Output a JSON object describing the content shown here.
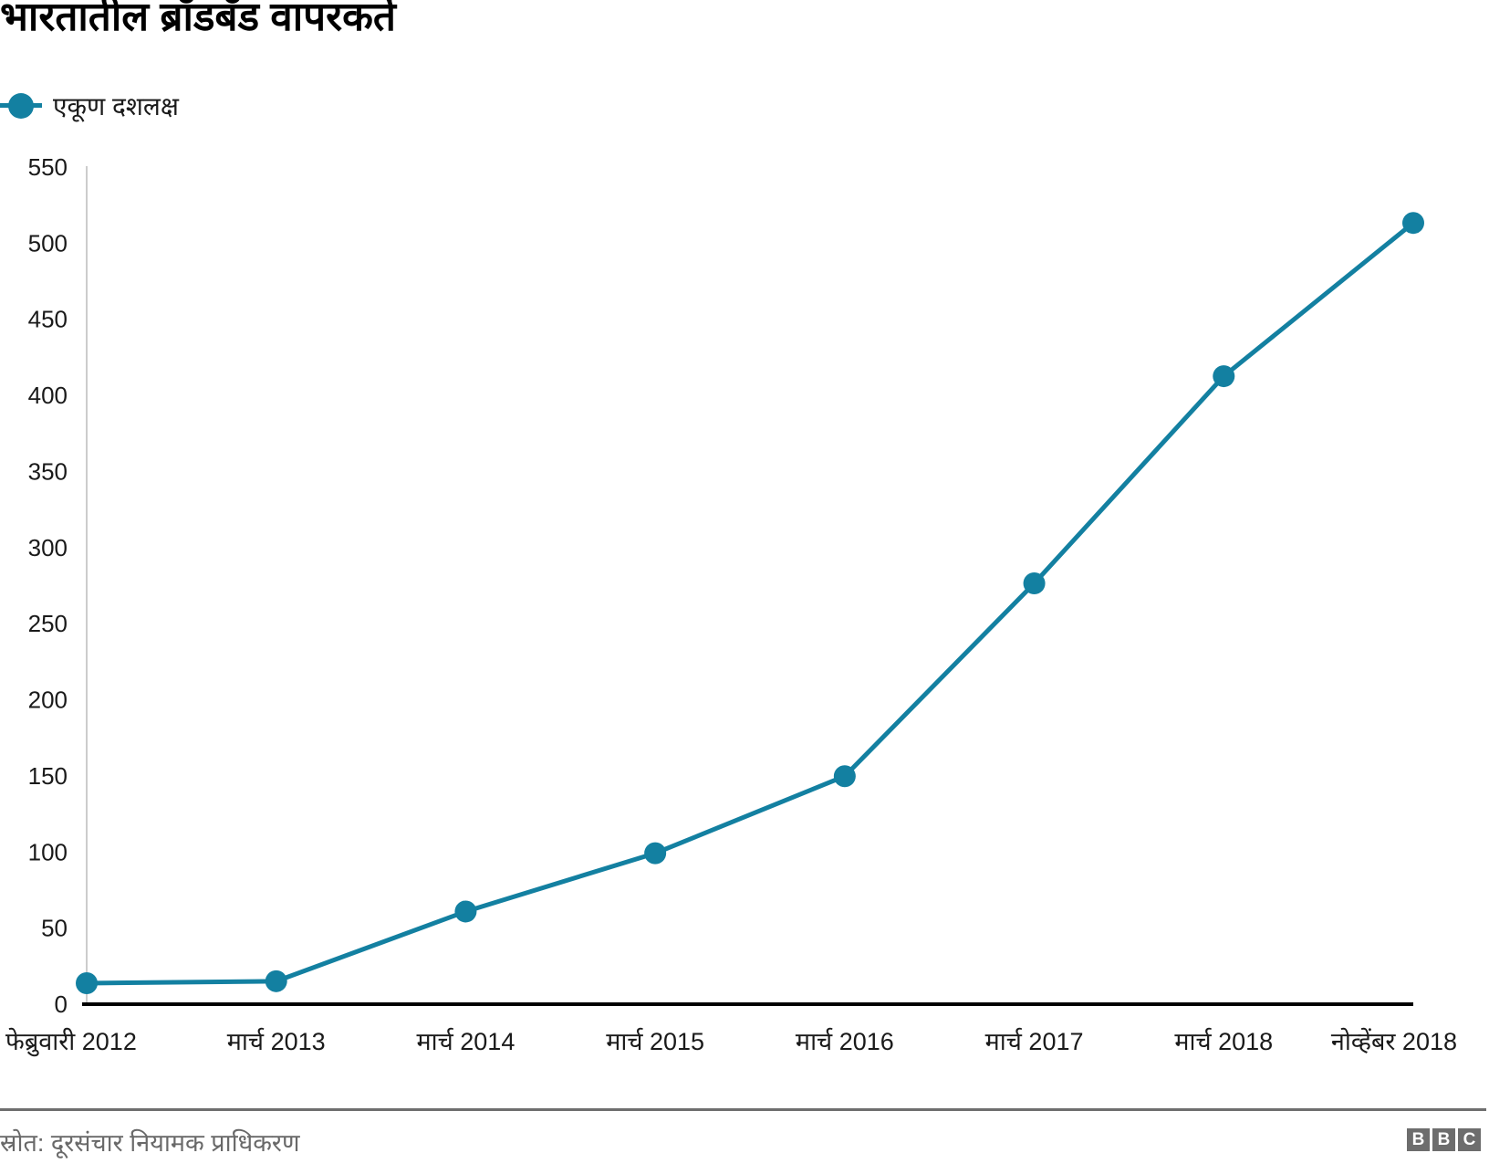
{
  "header": {
    "title": "भारतातील ब्रॉडबँड वापरकर्ते"
  },
  "legend": {
    "label": "एकूण दशलक्ष"
  },
  "chart_data": {
    "type": "line",
    "title": "भारतातील ब्रॉडबँड वापरकर्ते",
    "legend": "एकूण दशलक्ष",
    "legend_position": "top-left",
    "categories": [
      "फेब्रुवारी 2012",
      "मार्च 2013",
      "मार्च 2014",
      "मार्च 2015",
      "मार्च 2016",
      "मार्च 2017",
      "मार्च 2018",
      "नोव्हेंबर 2018"
    ],
    "values": [
      13.8,
      15.1,
      60.9,
      99.2,
      149.8,
      276.5,
      412.6,
      513.3
    ],
    "xlabel": "",
    "ylabel": "",
    "ylim": [
      0,
      550
    ],
    "ytick_step": 50,
    "grid": false,
    "line_color": "#1380A1",
    "axis_line_color": "#cccccc",
    "baseline_color": "#000000"
  },
  "footer": {
    "source": "स्रोत: दूरसंचार नियामक प्राधिकरण",
    "logo_letters": [
      "B",
      "B",
      "C"
    ]
  }
}
